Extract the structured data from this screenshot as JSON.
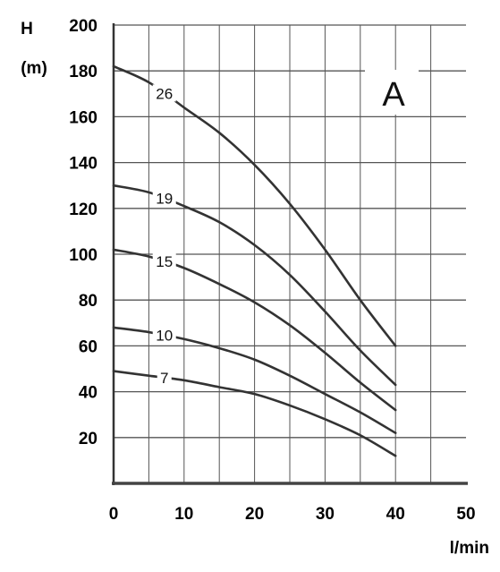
{
  "chart_data": {
    "type": "line",
    "xlabel": "l/min",
    "ylabel": "H",
    "ylabel_unit": "(m)",
    "panel_label": "A",
    "xlim": [
      0,
      50
    ],
    "ylim": [
      0,
      200
    ],
    "x_ticks": [
      "0",
      "10",
      "20",
      "30",
      "40",
      "50"
    ],
    "y_ticks": [
      "20",
      "40",
      "60",
      "80",
      "100",
      "120",
      "140",
      "160",
      "180",
      "200"
    ],
    "grid": true,
    "series": [
      {
        "name": "26",
        "x": [
          0,
          5,
          10,
          15,
          20,
          25,
          30,
          35,
          40
        ],
        "y": [
          182,
          175,
          164,
          153,
          139,
          122,
          102,
          80,
          60
        ]
      },
      {
        "name": "19",
        "x": [
          0,
          5,
          10,
          15,
          20,
          25,
          30,
          35,
          40
        ],
        "y": [
          130,
          127,
          121,
          114,
          104,
          91,
          75,
          58,
          43
        ]
      },
      {
        "name": "15",
        "x": [
          0,
          5,
          10,
          15,
          20,
          25,
          30,
          35,
          40
        ],
        "y": [
          102,
          99,
          94,
          87,
          79,
          69,
          57,
          44,
          32
        ]
      },
      {
        "name": "10",
        "x": [
          0,
          5,
          10,
          15,
          20,
          25,
          30,
          35,
          40
        ],
        "y": [
          68,
          66,
          63,
          59,
          54,
          47,
          39,
          31,
          22
        ]
      },
      {
        "name": "7",
        "x": [
          0,
          5,
          10,
          15,
          20,
          25,
          30,
          35,
          40
        ],
        "y": [
          49,
          47,
          45,
          42,
          39,
          34,
          28,
          21,
          12
        ]
      }
    ],
    "line_color": "#333333",
    "grid_color": "#555555"
  }
}
